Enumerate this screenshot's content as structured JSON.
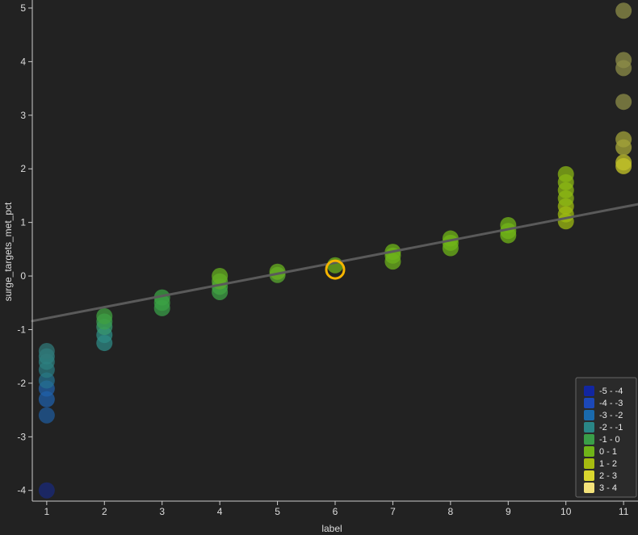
{
  "chart_data": {
    "type": "scatter",
    "title": "",
    "xlabel": "label",
    "ylabel": "surge_targets_met_pct",
    "xlim": [
      0.75,
      11.25
    ],
    "ylim": [
      -4.2,
      5.15
    ],
    "x_ticks": [
      "1",
      "2",
      "3",
      "4",
      "5",
      "6",
      "7",
      "8",
      "9",
      "10",
      "11"
    ],
    "y_ticks": [
      "-4",
      "-3",
      "-2",
      "-1",
      "0",
      "1",
      "2",
      "3",
      "4",
      "5"
    ],
    "grid": false,
    "background_color": "#222222",
    "axis_color": "#cccccc",
    "trend_line": {
      "x": [
        0.75,
        11.25
      ],
      "y": [
        -0.84,
        1.34
      ],
      "color": "#5a5a5a"
    },
    "highlight": {
      "x": 6,
      "y": 0.12,
      "color": "#f5b400"
    },
    "legend": {
      "position": "bottom-right",
      "entries": [
        {
          "label": "-5 - -4",
          "color": "#1226a0"
        },
        {
          "label": "-4 - -3",
          "color": "#1c48b8"
        },
        {
          "label": "-3 - -2",
          "color": "#1a6aad"
        },
        {
          "label": "-2 - -1",
          "color": "#2a8686"
        },
        {
          "label": "-1 - 0",
          "color": "#3a9e48"
        },
        {
          "label": "0 - 1",
          "color": "#70b418"
        },
        {
          "label": "1 - 2",
          "color": "#a6bc10"
        },
        {
          "label": "2 - 3",
          "color": "#d9d62e"
        },
        {
          "label": "3 - 4",
          "color": "#f3e27a"
        }
      ]
    },
    "points": [
      {
        "x": 1,
        "y": -4.0,
        "color": "#1a2a7a"
      },
      {
        "x": 1,
        "y": -2.6,
        "color": "#1f5a9a"
      },
      {
        "x": 1,
        "y": -2.3,
        "color": "#1f5fa8"
      },
      {
        "x": 1,
        "y": -2.1,
        "color": "#2060a8"
      },
      {
        "x": 1,
        "y": -1.95,
        "color": "#24708f"
      },
      {
        "x": 1,
        "y": -1.75,
        "color": "#2a7a80"
      },
      {
        "x": 1,
        "y": -1.6,
        "color": "#2c7e7e"
      },
      {
        "x": 1,
        "y": -1.5,
        "color": "#2e8080"
      },
      {
        "x": 1,
        "y": -1.4,
        "color": "#307878"
      },
      {
        "x": 2,
        "y": -1.25,
        "color": "#2e8884"
      },
      {
        "x": 2,
        "y": -1.1,
        "color": "#2e8c84"
      },
      {
        "x": 2,
        "y": -0.95,
        "color": "#389870"
      },
      {
        "x": 2,
        "y": -0.85,
        "color": "#3a9e50"
      },
      {
        "x": 2,
        "y": -0.75,
        "color": "#40a040"
      },
      {
        "x": 3,
        "y": -0.6,
        "color": "#3a9e48"
      },
      {
        "x": 3,
        "y": -0.5,
        "color": "#3aa044"
      },
      {
        "x": 3,
        "y": -0.4,
        "color": "#3ca244"
      },
      {
        "x": 4,
        "y": -0.3,
        "color": "#3ea246"
      },
      {
        "x": 4,
        "y": -0.2,
        "color": "#42a442"
      },
      {
        "x": 4,
        "y": -0.1,
        "color": "#5aaa30"
      },
      {
        "x": 4,
        "y": 0.0,
        "color": "#66b020"
      },
      {
        "x": 5,
        "y": 0.02,
        "color": "#5aaa30"
      },
      {
        "x": 5,
        "y": 0.08,
        "color": "#68b020"
      },
      {
        "x": 6,
        "y": 0.2,
        "color": "#6cb21c"
      },
      {
        "x": 7,
        "y": 0.27,
        "color": "#6cb21c"
      },
      {
        "x": 7,
        "y": 0.38,
        "color": "#6cb21c"
      },
      {
        "x": 7,
        "y": 0.45,
        "color": "#6eb41a"
      },
      {
        "x": 8,
        "y": 0.52,
        "color": "#6eb41a"
      },
      {
        "x": 8,
        "y": 0.62,
        "color": "#6eb41a"
      },
      {
        "x": 8,
        "y": 0.7,
        "color": "#70b418"
      },
      {
        "x": 9,
        "y": 0.76,
        "color": "#70b418"
      },
      {
        "x": 9,
        "y": 0.84,
        "color": "#70b418"
      },
      {
        "x": 9,
        "y": 0.95,
        "color": "#72b418"
      },
      {
        "x": 10,
        "y": 1.02,
        "color": "#9cba12"
      },
      {
        "x": 10,
        "y": 1.15,
        "color": "#9cba12"
      },
      {
        "x": 10,
        "y": 1.3,
        "color": "#9ebb12"
      },
      {
        "x": 10,
        "y": 1.45,
        "color": "#8eb814"
      },
      {
        "x": 10,
        "y": 1.6,
        "color": "#8eb814"
      },
      {
        "x": 10,
        "y": 1.75,
        "color": "#8cb814"
      },
      {
        "x": 10,
        "y": 1.9,
        "color": "#8ab614"
      },
      {
        "x": 11,
        "y": 2.05,
        "color": "#c8c828"
      },
      {
        "x": 11,
        "y": 2.12,
        "color": "#c2c22a"
      },
      {
        "x": 11,
        "y": 2.4,
        "color": "#a8a838"
      },
      {
        "x": 11,
        "y": 2.55,
        "color": "#a2a23a"
      },
      {
        "x": 11,
        "y": 3.25,
        "color": "#8e8e48"
      },
      {
        "x": 11,
        "y": 3.88,
        "color": "#8e8e48"
      },
      {
        "x": 11,
        "y": 4.03,
        "color": "#8e8e48"
      },
      {
        "x": 11,
        "y": 4.95,
        "color": "#8e8e48"
      }
    ]
  }
}
